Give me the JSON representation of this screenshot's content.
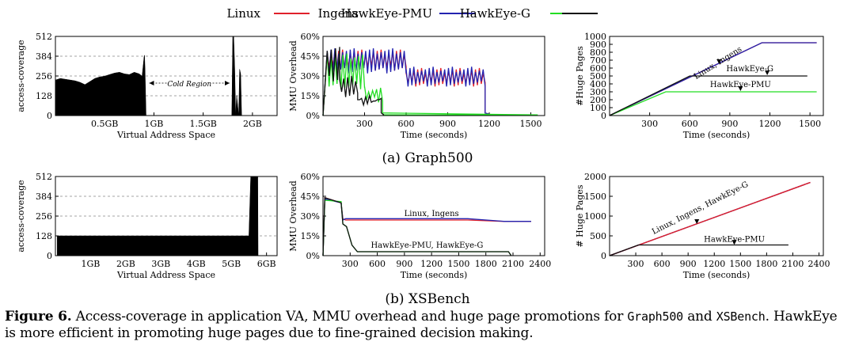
{
  "legend": [
    {
      "label": "Linux",
      "color": "#e0202a"
    },
    {
      "label": "Ingens",
      "color": ""
    },
    {
      "label": "HawkEye-PMU",
      "color": "#2323b0"
    },
    {
      "label": "HawkEye-G",
      "color": "#22dd22"
    },
    {
      "label": "",
      "color": "#111111"
    }
  ],
  "subcaptions": {
    "graph500": "(a) Graph500",
    "xsbench": "(b) XSBench"
  },
  "caption": {
    "label": "Figure 6.",
    "text1": " Access-coverage in application VA, MMU overhead and huge page promotions for ",
    "code1": "Graph500",
    "text2": " and ",
    "code2": "XSBench",
    "text3": ". HawkEye is more efficient in promoting huge pages due to fine-grained decision making."
  },
  "chart_data": [
    {
      "id": "g500-coverage",
      "type": "area",
      "title": "",
      "xlabel": "Virtual Address Space",
      "ylabel": "access-coverage",
      "xlim": [
        0,
        2.25
      ],
      "ylim": [
        0,
        512
      ],
      "xticks": [
        0.5,
        1.0,
        1.5,
        2.0
      ],
      "xticklabels": [
        "0.5GB",
        "1GB",
        "1.5GB",
        "2GB"
      ],
      "yticks": [
        0,
        128,
        256,
        384,
        512
      ],
      "yticklabels": [
        "0",
        "128",
        "256",
        "384",
        "512"
      ],
      "grid": true,
      "x": [
        0,
        0.05,
        0.1,
        0.15,
        0.2,
        0.25,
        0.3,
        0.35,
        0.4,
        0.45,
        0.5,
        0.55,
        0.6,
        0.65,
        0.7,
        0.75,
        0.8,
        0.85,
        0.88,
        0.9,
        0.905,
        0.91,
        0.92,
        1.79,
        1.8,
        1.81,
        1.82,
        1.83,
        1.84,
        1.86,
        1.87,
        1.88,
        1.89,
        1.9
      ],
      "y": [
        230,
        240,
        235,
        230,
        225,
        215,
        200,
        220,
        240,
        250,
        255,
        265,
        275,
        280,
        270,
        265,
        280,
        270,
        255,
        380,
        390,
        300,
        0,
        0,
        510,
        512,
        300,
        0,
        130,
        0,
        300,
        270,
        0,
        0
      ],
      "annotation": "Cold Region",
      "annotation_range": [
        0.92,
        1.8
      ]
    },
    {
      "id": "g500-mmu",
      "type": "line",
      "xlabel": "Time (seconds)",
      "ylabel": "MMU Overhead",
      "xlim": [
        0,
        1600
      ],
      "ylim": [
        0,
        60
      ],
      "xticks": [
        300,
        600,
        900,
        1200,
        1500
      ],
      "xticklabels": [
        "300",
        "600",
        "900",
        "1200",
        "1500"
      ],
      "yticks": [
        0,
        15,
        30,
        45,
        60
      ],
      "yticklabels": [
        "0%",
        "15%",
        "30%",
        "45%",
        "60%"
      ],
      "series": [
        {
          "name": "Linux",
          "color": "#e0202a",
          "kind": "osc",
          "segments": [
            [
              30,
              600,
              36,
              48
            ],
            [
              600,
              1170,
              24,
              34
            ]
          ],
          "end": [
            1170,
            1220
          ]
        },
        {
          "name": "Ingens",
          "color": "#2323b0",
          "kind": "osc",
          "segments": [
            [
              30,
              600,
              34,
              49
            ],
            [
              600,
              1170,
              24,
              35
            ]
          ],
          "end": [
            1170,
            1220
          ]
        },
        {
          "name": "HawkEye-PMU",
          "color": "#22dd22",
          "kind": "osc",
          "segments": [
            [
              30,
              300,
              22,
              45
            ],
            [
              300,
              430,
              12,
              20
            ]
          ],
          "end": [
            430,
            1550
          ]
        },
        {
          "name": "HawkEye-G",
          "color": "#111111",
          "kind": "osc",
          "segments": [
            [
              30,
              120,
              28,
              50
            ],
            [
              120,
              250,
              16,
              28
            ],
            [
              250,
              420,
              10,
              13
            ]
          ],
          "end": [
            420,
            440
          ]
        }
      ]
    },
    {
      "id": "g500-pages",
      "type": "line",
      "xlabel": "Time (seconds)",
      "ylabel": "#Huge Pages",
      "xlim": [
        0,
        1600
      ],
      "ylim": [
        0,
        1000
      ],
      "xticks": [
        300,
        600,
        900,
        1200,
        1500
      ],
      "xticklabels": [
        "300",
        "600",
        "900",
        "1200",
        "1500"
      ],
      "yticks": [
        0,
        100,
        200,
        300,
        400,
        500,
        600,
        700,
        800,
        900,
        1000
      ],
      "yticklabels": [
        "0",
        "100",
        "200",
        "300",
        "400",
        "500",
        "600",
        "700",
        "800",
        "900",
        "1000"
      ],
      "series": [
        {
          "name": "Linux",
          "color": "#e0202a",
          "x": [
            0,
            1140,
            1550
          ],
          "y": [
            0,
            920,
            920
          ]
        },
        {
          "name": "Ingens",
          "color": "#2323b0",
          "x": [
            0,
            1140,
            1550
          ],
          "y": [
            0,
            920,
            920
          ]
        },
        {
          "name": "HawkEye-PMU",
          "color": "#22dd22",
          "x": [
            0,
            420,
            1550
          ],
          "y": [
            0,
            300,
            300
          ]
        },
        {
          "name": "HawkEye-G",
          "color": "#111111",
          "x": [
            0,
            600,
            1480
          ],
          "y": [
            0,
            500,
            500
          ]
        }
      ],
      "annotations": [
        {
          "text": "Linux, Ingens",
          "x": 820,
          "y": 640,
          "ax": 820,
          "ay": 650
        },
        {
          "text": "HawkEye-G",
          "x": 1050,
          "y": 560,
          "ax": 1180,
          "ay": 510
        },
        {
          "text": "HawkEye-PMU",
          "x": 980,
          "y": 360,
          "ax": 980,
          "ay": 310
        }
      ]
    },
    {
      "id": "xs-coverage",
      "type": "area",
      "xlabel": "Virtual Address Space",
      "ylabel": "access-coverage",
      "xlim": [
        0,
        6.3
      ],
      "ylim": [
        0,
        512
      ],
      "xticks": [
        1,
        2,
        3,
        4,
        5,
        6
      ],
      "xticklabels": [
        "1GB",
        "2GB",
        "3GB",
        "4GB",
        "5GB",
        "6GB"
      ],
      "yticks": [
        0,
        128,
        256,
        384,
        512
      ],
      "yticklabels": [
        "0",
        "128",
        "256",
        "384",
        "512"
      ],
      "grid": true,
      "x": [
        0.05,
        5.5,
        5.55,
        5.75,
        5.76
      ],
      "y": [
        128,
        128,
        512,
        512,
        0
      ]
    },
    {
      "id": "xs-mmu",
      "type": "line",
      "xlabel": "Time (seconds)",
      "ylabel": "MMU Overhead",
      "xlim": [
        0,
        2450
      ],
      "ylim": [
        0,
        60
      ],
      "xticks": [
        300,
        600,
        900,
        1200,
        1500,
        1800,
        2100,
        2400
      ],
      "xticklabels": [
        "300",
        "600",
        "900",
        "1200",
        "1500",
        "1800",
        "2100",
        "2400"
      ],
      "yticks": [
        0,
        15,
        30,
        45,
        60
      ],
      "yticklabels": [
        "0%",
        "15%",
        "30%",
        "45%",
        "60%"
      ],
      "series": [
        {
          "name": "Linux",
          "color": "#e0202a",
          "x": [
            0,
            20,
            200,
            220,
            250,
            1600,
            2000,
            2300
          ],
          "y": [
            0,
            44,
            40,
            28,
            27,
            27,
            26,
            26
          ]
        },
        {
          "name": "Ingens",
          "color": "#2323b0",
          "x": [
            0,
            20,
            200,
            220,
            250,
            1600,
            2000,
            2300
          ],
          "y": [
            0,
            43,
            40,
            27,
            28,
            28,
            26,
            26
          ]
        },
        {
          "name": "HawkEye-PMU",
          "color": "#22dd22",
          "x": [
            0,
            20,
            200,
            220,
            260,
            320,
            380,
            2050,
            2080
          ],
          "y": [
            0,
            42,
            41,
            24,
            22,
            8,
            3,
            3,
            0
          ]
        },
        {
          "name": "HawkEye-G",
          "color": "#111111",
          "x": [
            0,
            20,
            200,
            220,
            260,
            320,
            380,
            2050,
            2080
          ],
          "y": [
            0,
            44,
            40,
            24,
            22,
            8,
            3,
            3,
            0
          ]
        }
      ],
      "annotations": [
        {
          "text": "Linux, Ingens",
          "x": 1200,
          "y": 30
        },
        {
          "text": "HawkEye-PMU, HawkEye-G",
          "x": 1150,
          "y": 6
        }
      ]
    },
    {
      "id": "xs-pages",
      "type": "line",
      "xlabel": "Time (seconds)",
      "ylabel": "# Huge Pages",
      "xlim": [
        0,
        2450
      ],
      "ylim": [
        0,
        2000
      ],
      "xticks": [
        300,
        600,
        900,
        1200,
        1500,
        1800,
        2100,
        2400
      ],
      "xticklabels": [
        "300",
        "600",
        "900",
        "1200",
        "1500",
        "1800",
        "2100",
        "2400"
      ],
      "yticks": [
        0,
        500,
        1000,
        1500,
        2000
      ],
      "yticklabels": [
        "0",
        "500",
        "1000",
        "1500",
        "2000"
      ],
      "series": [
        {
          "name": "Linux",
          "color": "#e0202a",
          "x": [
            0,
            2300
          ],
          "y": [
            0,
            1850
          ]
        },
        {
          "name": "Ingens",
          "color": "#2323b0",
          "x": [
            0,
            2300
          ],
          "y": [
            0,
            1850
          ]
        },
        {
          "name": "HawkEye-G",
          "color": "#e0202a",
          "x": [
            0,
            2300
          ],
          "y": [
            0,
            1850
          ]
        },
        {
          "name": "HawkEye-PMU",
          "color": "#111111",
          "x": [
            0,
            330,
            2050
          ],
          "y": [
            0,
            270,
            270
          ]
        }
      ],
      "annotations": [
        {
          "text": "Linux, Ingens, HawkEye-G",
          "x": 1050,
          "y": 1150,
          "ax": 1000,
          "ay": 800
        },
        {
          "text": "HawkEye-PMU",
          "x": 1430,
          "y": 350,
          "ax": 1430,
          "ay": 275
        }
      ]
    }
  ]
}
